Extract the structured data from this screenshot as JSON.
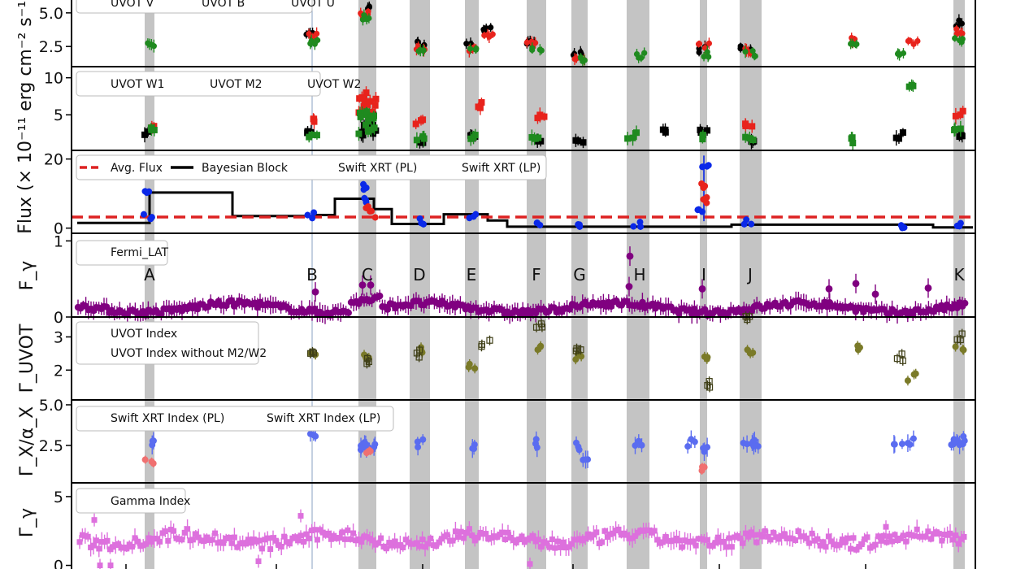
{
  "figure": {
    "shared_ylabel": "Flux (× 10⁻¹¹ erg cm⁻² s⁻¹)",
    "colors": {
      "black": "#000000",
      "red": "#e8231c",
      "green": "#1f8a1f",
      "blue": "#0a28e8",
      "purple": "#800080",
      "olive": "#7a7a28",
      "uvot_nom2": "#404018",
      "xrt_pl": "#5a6cf0",
      "xrt_lp": "#f07070",
      "gamma": "#dd70dd",
      "avg_flux": "#dd2222",
      "shade": "#c4c4c4",
      "frame": "#000000"
    }
  },
  "epochs": [
    {
      "label": "A",
      "x": 184
    },
    {
      "label": "B",
      "x": 384
    },
    {
      "label": "C",
      "x": 452
    },
    {
      "label": "D",
      "x": 516
    },
    {
      "label": "E",
      "x": 580
    },
    {
      "label": "F",
      "x": 660
    },
    {
      "label": "G",
      "x": 713
    },
    {
      "label": "H",
      "x": 787
    },
    {
      "label": "I",
      "x": 866
    },
    {
      "label": "J",
      "x": 923
    },
    {
      "label": "K",
      "x": 1180
    }
  ],
  "chart_data": [
    {
      "type": "scatter",
      "panel": "uvot_vbu",
      "ylabel": "",
      "yticks": [
        2.5,
        5.0
      ],
      "ylim": [
        1.0,
        6.2
      ],
      "legend": [
        "UVOT V",
        "UVOT B",
        "UVOT U"
      ],
      "series": [
        {
          "name": "UVOT V",
          "values": [
            [
              384,
              3.6
            ],
            [
              450,
              5.3
            ],
            [
              516,
              2.7
            ],
            [
              580,
              2.6
            ],
            [
              598,
              3.7
            ],
            [
              652,
              2.9
            ],
            [
              709,
              1.9
            ],
            [
              866,
              2.3
            ],
            [
              918,
              2.4
            ],
            [
              1180,
              4.2
            ]
          ]
        },
        {
          "name": "UVOT B",
          "values": [
            [
              384,
              3.3
            ],
            [
              450,
              5.1
            ],
            [
              516,
              2.4
            ],
            [
              580,
              2.4
            ],
            [
              600,
              3.4
            ],
            [
              655,
              2.7
            ],
            [
              713,
              1.7
            ],
            [
              866,
              2.5
            ],
            [
              922,
              2.2
            ],
            [
              1053,
              3.0
            ],
            [
              1122,
              2.7
            ],
            [
              1178,
              3.6
            ]
          ]
        },
        {
          "name": "UVOT U",
          "values": [
            [
              184,
              2.7
            ],
            [
              384,
              2.9
            ],
            [
              452,
              4.7
            ],
            [
              516,
              2.1
            ],
            [
              580,
              2.1
            ],
            [
              660,
              2.3
            ],
            [
              713,
              1.5
            ],
            [
              787,
              1.8
            ],
            [
              866,
              1.9
            ],
            [
              923,
              2.0
            ],
            [
              1053,
              2.5
            ],
            [
              1105,
              2.1
            ],
            [
              1180,
              2.9
            ]
          ]
        }
      ]
    },
    {
      "type": "scatter",
      "panel": "uvot_w1m2w2",
      "ylabel": "",
      "yticks": [
        5,
        10
      ],
      "ylim": [
        0.2,
        11.5
      ],
      "legend": [
        "UVOT W1",
        "UVOT M2",
        "UVOT W2"
      ],
      "series": [
        {
          "name": "UVOT W1",
          "values": [
            [
              184,
              2.6
            ],
            [
              384,
              3.0
            ],
            [
              452,
              3.5
            ],
            [
              516,
              1.5
            ],
            [
              582,
              2.3
            ],
            [
              660,
              1.5
            ],
            [
              713,
              1.4
            ],
            [
              820,
              2.6
            ],
            [
              866,
              2.7
            ],
            [
              923,
              1.6
            ],
            [
              1105,
              2.2
            ],
            [
              1180,
              2.3
            ]
          ]
        },
        {
          "name": "UVOT M2",
          "values": [
            [
              184,
              3.3
            ],
            [
              384,
              4.5
            ],
            [
              452,
              6.5
            ],
            [
              516,
              4.0
            ],
            [
              587,
              6.3
            ],
            [
              667,
              5.0
            ],
            [
              922,
              3.6
            ],
            [
              1180,
              5.2
            ]
          ]
        },
        {
          "name": "UVOT W2",
          "values": [
            [
              184,
              2.9
            ],
            [
              384,
              2.3
            ],
            [
              452,
              3.8
            ],
            [
              516,
              2.0
            ],
            [
              580,
              2.0
            ],
            [
              660,
              2.0
            ],
            [
              778,
              2.2
            ],
            [
              866,
              1.9
            ],
            [
              923,
              1.9
            ],
            [
              1053,
              1.6
            ],
            [
              1121,
              8.7
            ],
            [
              1180,
              2.7
            ]
          ]
        }
      ]
    },
    {
      "type": "line",
      "panel": "xray_flux",
      "ylabel": "",
      "yticks": [
        0,
        20
      ],
      "ylim": [
        -1.5,
        22.5
      ],
      "legend": [
        "Avg. Flux",
        "Bayesian Block",
        "Swift XRT (PL)",
        "Swift XRT (LP)"
      ],
      "avg_flux": 3.2,
      "bayesian_block": [
        [
          95,
          1.5
        ],
        [
          184,
          1.5
        ],
        [
          184,
          10.3
        ],
        [
          286,
          10.3
        ],
        [
          286,
          3.5
        ],
        [
          386,
          3.5
        ],
        [
          386,
          3.8
        ],
        [
          412,
          3.8
        ],
        [
          412,
          8.5
        ],
        [
          460,
          8.5
        ],
        [
          460,
          5.5
        ],
        [
          482,
          5.5
        ],
        [
          482,
          1.2
        ],
        [
          546,
          1.2
        ],
        [
          546,
          4.0
        ],
        [
          600,
          4.0
        ],
        [
          600,
          2.2
        ],
        [
          624,
          2.2
        ],
        [
          624,
          0.4
        ],
        [
          900,
          0.4
        ],
        [
          900,
          1.0
        ],
        [
          1148,
          1.0
        ],
        [
          1148,
          0.2
        ],
        [
          1197,
          0.2
        ]
      ],
      "series": [
        {
          "name": "Swift XRT (PL)",
          "values": [
            [
              184,
              3.5
            ],
            [
              186,
              10.0
            ],
            [
              384,
              3.8
            ],
            [
              444,
              12.0
            ],
            [
              452,
              8.0
            ],
            [
              516,
              1.8
            ],
            [
              580,
              3.8
            ],
            [
              660,
              0.6
            ],
            [
              713,
              0.4
            ],
            [
              787,
              1.0
            ],
            [
              866,
              18.5
            ],
            [
              866,
              4.5
            ],
            [
              923,
              1.5
            ],
            [
              1105,
              0.9
            ],
            [
              1180,
              0.6
            ]
          ]
        },
        {
          "name": "Swift XRT (LP)",
          "values": [
            [
              452,
              6.5
            ],
            [
              460,
              4.0
            ],
            [
              866,
              12.0
            ],
            [
              866,
              8.0
            ]
          ]
        }
      ]
    },
    {
      "type": "scatter",
      "panel": "fermi",
      "ylabel": "F_γ",
      "yticks": [
        0,
        1
      ],
      "ylim": [
        0,
        1.1
      ],
      "legend": [
        "Fermi_LAT"
      ],
      "series": [
        {
          "name": "Fermi_LAT",
          "values": [
            [
              775,
              0.8
            ],
            [
              774,
              0.4
            ],
            [
              1053,
              0.44
            ],
            [
              1142,
              0.38
            ],
            [
              456,
              0.42
            ],
            [
              446,
              0.42
            ],
            [
              388,
              0.33
            ],
            [
              864,
              0.37
            ],
            [
              1020,
              0.37
            ],
            [
              1077,
              0.3
            ]
          ]
        }
      ]
    },
    {
      "type": "scatter",
      "panel": "uvot_index",
      "ylabel": "Γ_UVOT",
      "yticks": [
        2,
        3
      ],
      "ylim": [
        1.1,
        3.6
      ],
      "legend": [
        "UVOT Index",
        "UVOT Index without M2/W2"
      ],
      "series": [
        {
          "name": "UVOT Index",
          "values": [
            [
              384,
              2.5
            ],
            [
              452,
              2.4
            ],
            [
              516,
              2.6
            ],
            [
              580,
              2.1
            ],
            [
              660,
              2.7
            ],
            [
              713,
              2.4
            ],
            [
              866,
              2.3
            ],
            [
              923,
              2.6
            ],
            [
              1053,
              2.7
            ],
            [
              1122,
              1.8
            ],
            [
              1180,
              2.7
            ]
          ]
        },
        {
          "name": "UVOT Index without M2/W2",
          "values": [
            [
              384,
              2.6
            ],
            [
              452,
              2.3
            ],
            [
              516,
              2.5
            ],
            [
              598,
              2.8
            ],
            [
              666,
              3.3
            ],
            [
              713,
              2.7
            ],
            [
              870,
              1.6
            ],
            [
              918,
              3.5
            ],
            [
              1105,
              2.4
            ],
            [
              1180,
              3.0
            ]
          ]
        }
      ]
    },
    {
      "type": "scatter",
      "panel": "xray_index",
      "ylabel": "Γ_X/α_X",
      "yticks": [
        2.5,
        5.0
      ],
      "ylim": [
        0.2,
        5.3
      ],
      "legend": [
        "Swift XRT Index (PL)",
        "Swift XRT Index (LP)"
      ],
      "series": [
        {
          "name": "Swift XRT Index (PL)",
          "values": [
            [
              184,
              2.5
            ],
            [
              384,
              3.3
            ],
            [
              452,
              2.5
            ],
            [
              516,
              2.6
            ],
            [
              580,
              2.4
            ],
            [
              660,
              2.6
            ],
            [
              713,
              2.4
            ],
            [
              720,
              1.5
            ],
            [
              787,
              2.7
            ],
            [
              850,
              2.7
            ],
            [
              866,
              2.4
            ],
            [
              923,
              2.7
            ],
            [
              1105,
              2.4
            ],
            [
              1121,
              2.8
            ],
            [
              1180,
              2.8
            ]
          ]
        },
        {
          "name": "Swift XRT Index (LP)",
          "values": [
            [
              184,
              1.5
            ],
            [
              452,
              2.1
            ],
            [
              866,
              1.1
            ]
          ]
        }
      ]
    },
    {
      "type": "scatter",
      "panel": "gamma_index",
      "ylabel": "Γ_γ",
      "yticks": [
        0,
        5
      ],
      "ylim": [
        -0.5,
        6.0
      ],
      "legend": [
        "Gamma Index"
      ],
      "series": [
        {
          "name": "Gamma Index",
          "values": [
            [
              123,
              0
            ],
            [
              136,
              0
            ],
            [
              318,
              0.3
            ],
            [
              652,
              0.1
            ],
            [
              116,
              3.3
            ],
            [
              370,
              3.6
            ],
            [
              1090,
              2.8
            ]
          ]
        }
      ]
    }
  ]
}
